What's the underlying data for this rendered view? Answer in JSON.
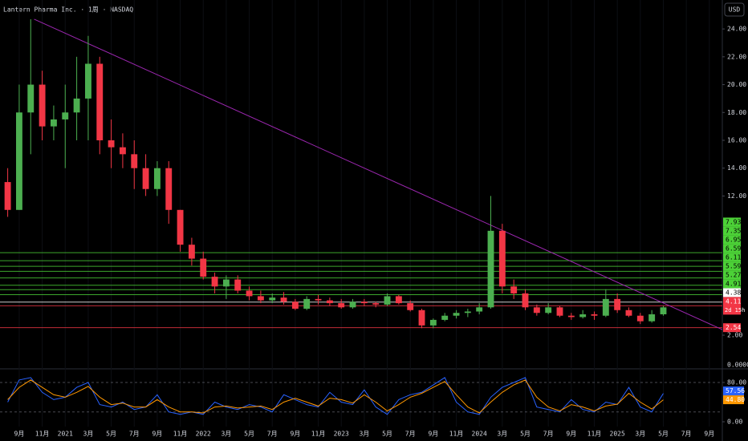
{
  "chart_data": {
    "type": "candlestick",
    "title": "Lantern Pharma Inc. · 1周 · NASDAQ",
    "currency": "USD",
    "x": [
      7,
      8,
      9,
      10,
      11,
      12,
      13,
      14,
      15,
      16,
      17,
      18,
      19,
      20,
      21,
      22,
      23,
      24,
      25,
      26,
      27,
      28,
      29,
      30,
      31,
      32,
      33,
      34,
      35,
      36,
      37,
      38,
      39,
      40,
      41,
      42,
      43,
      44,
      45,
      46,
      47,
      48,
      49,
      50,
      51,
      52,
      53,
      54,
      55,
      56,
      57,
      58,
      59,
      60,
      61,
      62,
      63,
      64
    ],
    "open": [
      13,
      11,
      18,
      20,
      17,
      17.5,
      18,
      19,
      21.5,
      16,
      15.5,
      15,
      14,
      12.5,
      14,
      11,
      8.5,
      7.5,
      6.2,
      5.5,
      6,
      5.2,
      4.8,
      4.5,
      4.7,
      4.4,
      3.9,
      4.6,
      4.5,
      4.3,
      4.0,
      4.4,
      4.3,
      4.2,
      4.8,
      4.3,
      3.8,
      2.7,
      3.1,
      3.4,
      3.6,
      3.7,
      4.0,
      9.5,
      5.5,
      5.0,
      4.0,
      3.6,
      4.0,
      3.4,
      3.3,
      3.5,
      3.4,
      4.6,
      3.8,
      3.4,
      3.0,
      3.5
    ],
    "high": [
      14,
      20,
      24.7,
      21,
      18.5,
      20,
      22,
      23.5,
      22,
      17.5,
      16.5,
      16,
      15,
      14.5,
      14.5,
      11,
      9,
      8,
      6.5,
      6.3,
      6.3,
      5.5,
      5.2,
      5,
      5.1,
      4.6,
      4.8,
      4.9,
      4.7,
      4.6,
      4.6,
      4.6,
      4.4,
      5,
      4.9,
      4.5,
      3.9,
      3.2,
      3.6,
      3.8,
      3.9,
      4.3,
      12,
      10,
      6,
      5.3,
      4.2,
      4.3,
      4.1,
      3.6,
      3.8,
      3.7,
      5.3,
      5.0,
      4.0,
      3.6,
      3.8,
      4.1
    ],
    "low": [
      10.5,
      11,
      15,
      16,
      16,
      14,
      16,
      16,
      15,
      14,
      14,
      12.5,
      12,
      12,
      10,
      8,
      7,
      6,
      5,
      4.6,
      5,
      4.5,
      4.3,
      4.3,
      4.2,
      3.8,
      3.8,
      4.2,
      4.1,
      3.9,
      3.9,
      4.1,
      4.0,
      4.1,
      4.2,
      3.7,
      2.5,
      2.5,
      3.0,
      3.2,
      3.3,
      3.5,
      3.9,
      5,
      4.6,
      3.8,
      3.4,
      3.5,
      3.3,
      3.1,
      3.2,
      3.1,
      3.3,
      3.6,
      3.3,
      2.8,
      2.9,
      3.4
    ],
    "close": [
      11,
      18,
      20,
      17,
      17.5,
      18,
      19,
      21.5,
      16,
      15.5,
      15,
      14,
      12.5,
      14,
      11,
      8.5,
      7.5,
      6.2,
      5.5,
      6,
      5.2,
      4.8,
      4.5,
      4.7,
      4.4,
      3.9,
      4.6,
      4.5,
      4.3,
      4.0,
      4.4,
      4.3,
      4.2,
      4.8,
      4.3,
      3.8,
      2.7,
      3.1,
      3.4,
      3.6,
      3.7,
      4.0,
      9.5,
      5.5,
      5.0,
      4.0,
      3.6,
      4.0,
      3.4,
      3.3,
      3.5,
      3.4,
      4.6,
      3.8,
      3.4,
      3.0,
      3.5,
      4.0
    ],
    "up_color": "#4caf50",
    "down_color": "#f23645",
    "xlim": [
      6.33,
      69.13
    ],
    "xticks": [
      {
        "value": 8,
        "label": "9月"
      },
      {
        "value": 10,
        "label": "11月"
      },
      {
        "value": 12,
        "label": "2021"
      },
      {
        "value": 14,
        "label": "3月"
      },
      {
        "value": 16,
        "label": "5月"
      },
      {
        "value": 18,
        "label": "7月"
      },
      {
        "value": 20,
        "label": "9月"
      },
      {
        "value": 22,
        "label": "11月"
      },
      {
        "value": 24,
        "label": "2022"
      },
      {
        "value": 26,
        "label": "3月"
      },
      {
        "value": 28,
        "label": "5月"
      },
      {
        "value": 30,
        "label": "7月"
      },
      {
        "value": 32,
        "label": "9月"
      },
      {
        "value": 34,
        "label": "11月"
      },
      {
        "value": 36,
        "label": "2023"
      },
      {
        "value": 38,
        "label": "3月"
      },
      {
        "value": 40,
        "label": "5月"
      },
      {
        "value": 42,
        "label": "7月"
      },
      {
        "value": 44,
        "label": "9月"
      },
      {
        "value": 46,
        "label": "11月"
      },
      {
        "value": 48,
        "label": "2024"
      },
      {
        "value": 50,
        "label": "3月"
      },
      {
        "value": 52,
        "label": "5月"
      },
      {
        "value": 54,
        "label": "7月"
      },
      {
        "value": 56,
        "label": "9月"
      },
      {
        "value": 58,
        "label": "11月"
      },
      {
        "value": 60,
        "label": "2025"
      },
      {
        "value": 62,
        "label": "3月"
      },
      {
        "value": 64,
        "label": "5月"
      },
      {
        "value": 66,
        "label": "7月"
      },
      {
        "value": 68,
        "label": "9月"
      }
    ],
    "ylim": [
      -0.13,
      26.08
    ],
    "yticks": [
      {
        "value": 24,
        "label": "24.00"
      },
      {
        "value": 22,
        "label": "22.00"
      },
      {
        "value": 20,
        "label": "20.00"
      },
      {
        "value": 18,
        "label": "18.00"
      },
      {
        "value": 16,
        "label": "16.00"
      },
      {
        "value": 14,
        "label": "14.00"
      },
      {
        "value": 12,
        "label": "12.00"
      },
      {
        "value": 2,
        "label": "2.00"
      }
    ],
    "levels": [
      {
        "value": 7.93,
        "label": "7.93",
        "color": "#4cd137"
      },
      {
        "value": 7.35,
        "label": "7.35",
        "color": "#4cd137"
      },
      {
        "value": 6.95,
        "label": "6.95",
        "color": "#4cd137"
      },
      {
        "value": 6.59,
        "label": "6.59",
        "color": "#4cd137"
      },
      {
        "value": 6.11,
        "label": "6.11",
        "color": "#4cd137"
      },
      {
        "value": 5.59,
        "label": "5.59",
        "color": "#4cd137"
      },
      {
        "value": 5.27,
        "label": "5.27",
        "color": "#4cd137"
      },
      {
        "value": 4.91,
        "label": "4.91",
        "color": "#4cd137"
      },
      {
        "value": 4.38,
        "label": "4.38",
        "color": "#ffffff"
      },
      {
        "value": 4.11,
        "label": "4.11",
        "color": "#f23645",
        "countdown": "2d 15h"
      },
      {
        "value": 2.54,
        "label": "2.54",
        "color": "#f23645"
      }
    ],
    "trendline": {
      "x": [
        9.3,
        69.13
      ],
      "y": [
        24.7,
        2.4
      ],
      "color": "#9c27b0"
    },
    "oscillator": {
      "header": "0.0000",
      "ylim": [
        -9.8,
        104.5
      ],
      "yticks": [
        {
          "value": 80,
          "label": "80.00"
        },
        {
          "value": 0,
          "label": "0.00"
        }
      ],
      "bands": [
        80,
        20
      ],
      "series": [
        {
          "color": "#2962ff",
          "values": [
            40,
            85,
            90,
            60,
            45,
            50,
            70,
            80,
            35,
            30,
            40,
            25,
            30,
            55,
            20,
            15,
            20,
            15,
            40,
            30,
            25,
            35,
            30,
            20,
            55,
            45,
            35,
            30,
            60,
            40,
            35,
            65,
            30,
            15,
            45,
            55,
            60,
            75,
            90,
            40,
            20,
            15,
            50,
            70,
            80,
            90,
            30,
            25,
            20,
            45,
            25,
            20,
            40,
            35,
            70,
            30,
            20,
            57.56
          ],
          "last_label": "57.56"
        },
        {
          "color": "#ff9800",
          "values": [
            45,
            70,
            85,
            70,
            55,
            50,
            60,
            72,
            50,
            35,
            38,
            30,
            30,
            45,
            30,
            20,
            20,
            18,
            30,
            32,
            28,
            30,
            32,
            25,
            40,
            48,
            40,
            32,
            48,
            45,
            38,
            55,
            40,
            22,
            35,
            50,
            58,
            70,
            82,
            55,
            30,
            18,
            40,
            60,
            75,
            85,
            50,
            30,
            22,
            35,
            30,
            22,
            32,
            36,
            58,
            40,
            26,
            44.8
          ],
          "last_label": "44.80"
        }
      ]
    }
  }
}
